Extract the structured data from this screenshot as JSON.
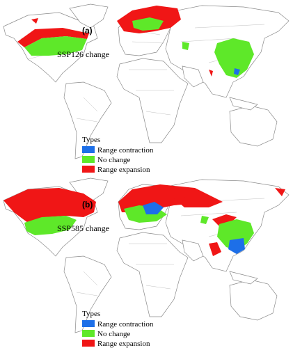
{
  "panels": [
    {
      "label": "(a)",
      "title": "SSP126 change",
      "legend": {
        "title": "Types",
        "items": [
          {
            "label": "Range contraction",
            "color": "#1d6fe8"
          },
          {
            "label": "No change",
            "color": "#5ee829"
          },
          {
            "label": "Range expansion",
            "color": "#f01616"
          }
        ]
      }
    },
    {
      "label": "(b)",
      "title": "SSP585 change",
      "legend": {
        "title": "Types",
        "items": [
          {
            "label": "Range contraction",
            "color": "#1d6fe8"
          },
          {
            "label": "No change",
            "color": "#5ee829"
          },
          {
            "label": "Range expansion",
            "color": "#f01616"
          }
        ]
      }
    }
  ]
}
